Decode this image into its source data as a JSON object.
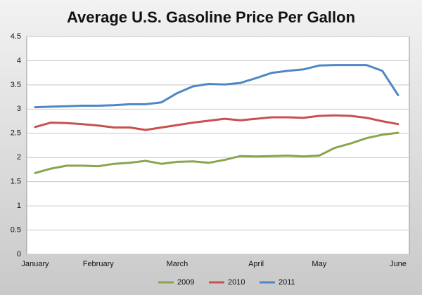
{
  "chart_data": {
    "type": "line",
    "title": "Average U.S. Gasoline Price Per Gallon",
    "categories": [
      "January",
      null,
      null,
      null,
      "February",
      null,
      null,
      null,
      null,
      "March",
      null,
      null,
      null,
      null,
      "April",
      null,
      null,
      null,
      "May",
      null,
      null,
      null,
      null,
      "June"
    ],
    "series": [
      {
        "name": "2009",
        "color": "#8aa54e",
        "values": [
          1.68,
          1.77,
          1.83,
          1.83,
          1.82,
          1.87,
          1.89,
          1.93,
          1.87,
          1.91,
          1.92,
          1.89,
          1.95,
          2.03,
          2.02,
          2.03,
          2.04,
          2.02,
          2.04,
          2.2,
          2.29,
          2.4,
          2.47,
          2.51
        ]
      },
      {
        "name": "2010",
        "color": "#c9504e",
        "values": [
          2.63,
          2.72,
          2.71,
          2.69,
          2.66,
          2.62,
          2.62,
          2.57,
          2.62,
          2.67,
          2.72,
          2.76,
          2.8,
          2.77,
          2.8,
          2.83,
          2.83,
          2.82,
          2.86,
          2.87,
          2.86,
          2.82,
          2.75,
          2.69
        ]
      },
      {
        "name": "2011",
        "color": "#4f86c6",
        "values": [
          3.04,
          3.05,
          3.06,
          3.07,
          3.07,
          3.08,
          3.1,
          3.1,
          3.14,
          3.33,
          3.47,
          3.52,
          3.51,
          3.54,
          3.64,
          3.75,
          3.79,
          3.82,
          3.9,
          3.91,
          3.91,
          3.91,
          3.79,
          3.29
        ]
      }
    ],
    "ylim": [
      0,
      4.5
    ],
    "yticks": [
      0,
      0.5,
      1,
      1.5,
      2,
      2.5,
      3,
      3.5,
      4,
      4.5
    ],
    "grid": true,
    "legend": "bottom"
  }
}
